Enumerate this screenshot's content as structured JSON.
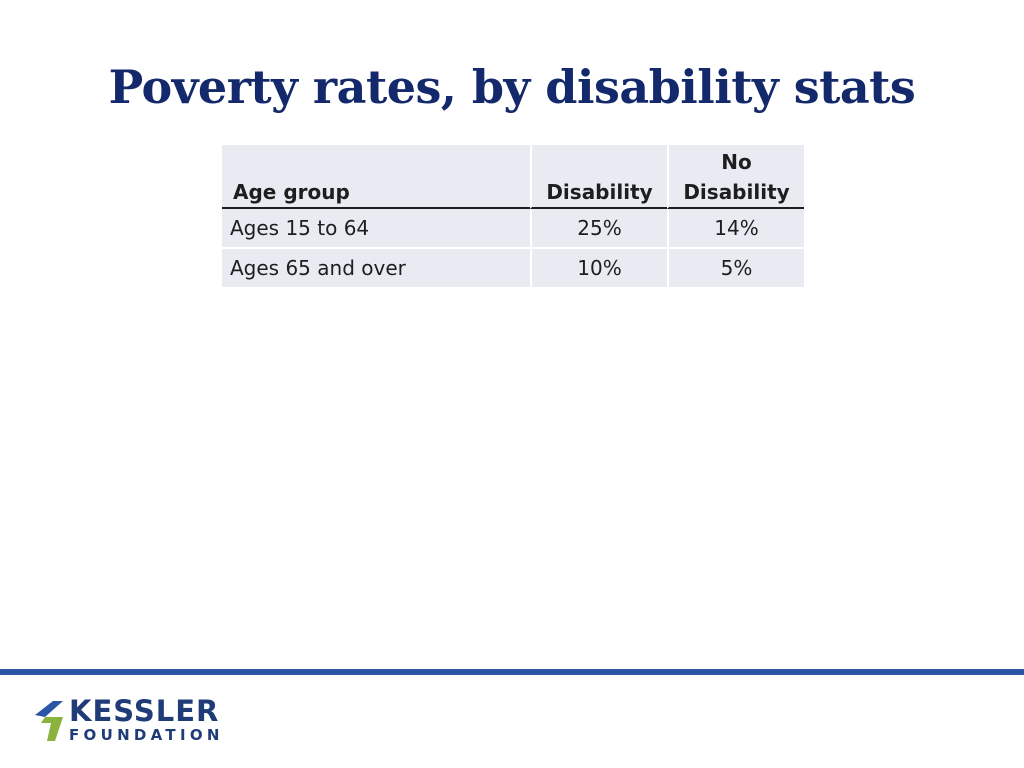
{
  "title": "Poverty rates, by disability stats",
  "table": {
    "headers": {
      "age_group": "Age group",
      "disability": "Disability",
      "no_disability_line1": "No",
      "no_disability_line2": "Disability"
    },
    "rows": [
      {
        "age": "Ages 15 to 64",
        "disability": "25%",
        "no_disability": "14%"
      },
      {
        "age": "Ages 65 and over",
        "disability": "10%",
        "no_disability": "5%"
      }
    ]
  },
  "logo": {
    "name": "KESSLER",
    "sub": "FOUNDATION"
  },
  "colors": {
    "title": "#14296b",
    "footer_bar": "#2a56a5",
    "logo_text": "#1f3c78",
    "logo_green": "#8bb23f",
    "cell_fill": "#e9ebf3"
  }
}
